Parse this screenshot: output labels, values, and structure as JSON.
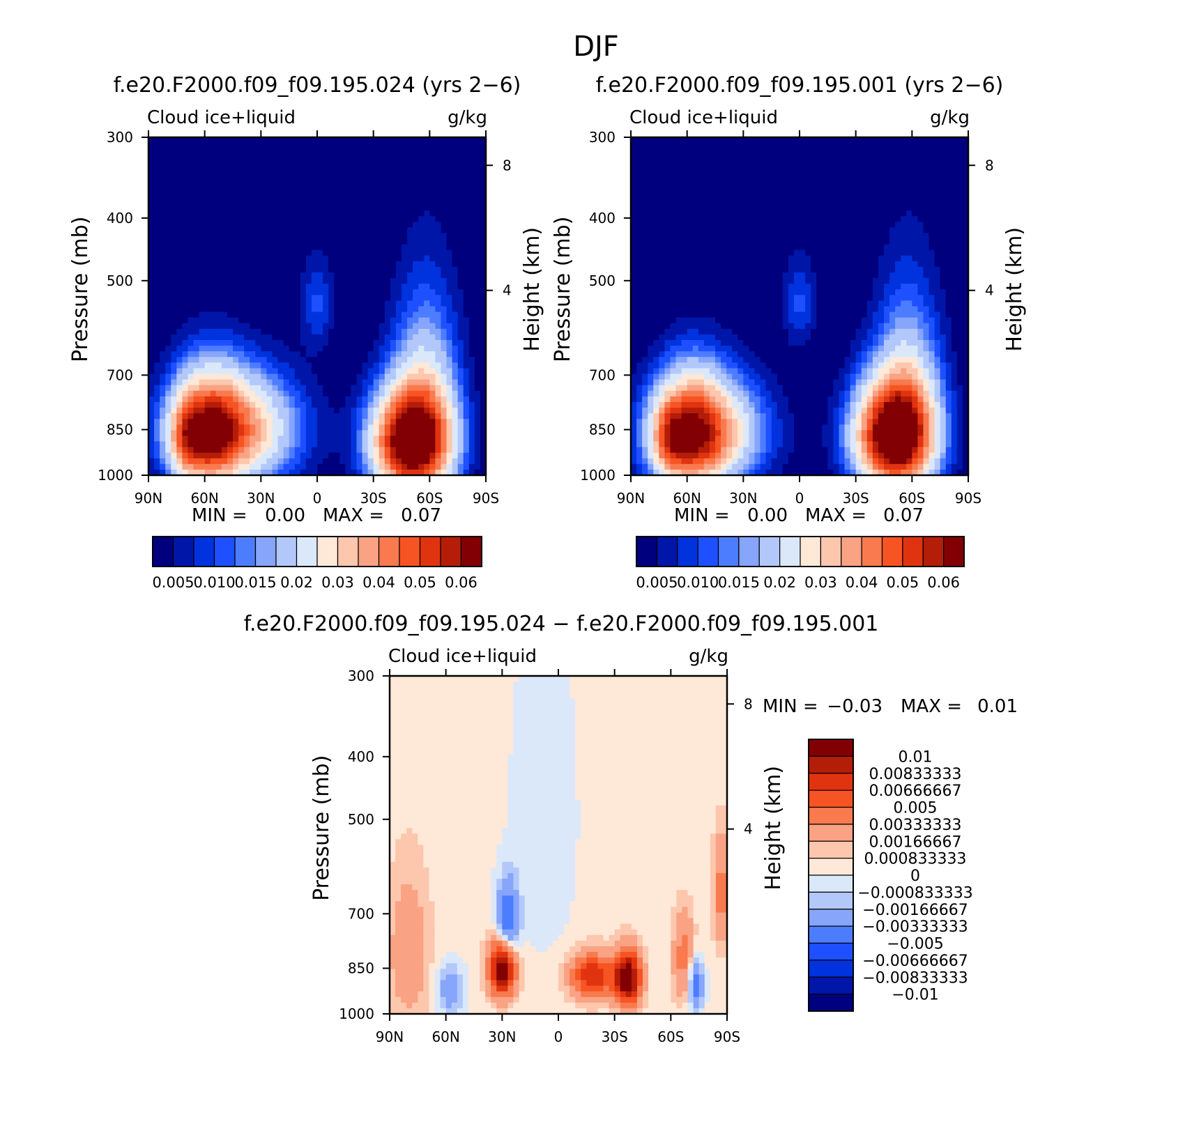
{
  "page": {
    "season": "DJF"
  },
  "colors": {
    "abs_scale": [
      "#00007f",
      "#0016a8",
      "#0032dd",
      "#1f50ff",
      "#4d7dff",
      "#86a5fb",
      "#b3c8fa",
      "#dbe8fa",
      "#fee8d8",
      "#fcc7ad",
      "#f9a284",
      "#f87a4e",
      "#f75424",
      "#e03410",
      "#b41d08",
      "#820003"
    ],
    "diff_scale": [
      "#00007f",
      "#0016a8",
      "#0032dd",
      "#1f50ff",
      "#4d7dff",
      "#86a5fb",
      "#b3c8fa",
      "#dbe8fa",
      "#fee8d8",
      "#fcc7ad",
      "#f9a284",
      "#f87a4e",
      "#f75424",
      "#e03410",
      "#b41d08",
      "#820003"
    ]
  },
  "chart_data": [
    {
      "type": "heatmap",
      "title": "f.e20.F2000.f09_f09.195.024 (yrs 2−6)",
      "variable": "Cloud ice+liquid",
      "units": "g/kg",
      "ylabel": "Pressure (mb)",
      "y2label": "Height (km)",
      "x_ticks": [
        "90N",
        "60N",
        "30N",
        "0",
        "30S",
        "60S",
        "90S"
      ],
      "y_ticks": [
        300,
        400,
        500,
        700,
        850,
        1000
      ],
      "y2_ticks": [
        8,
        4
      ],
      "stats": {
        "min_label": "MIN =",
        "min": "0.00",
        "max_label": "MAX =",
        "max": "0.07"
      },
      "colorbar_labels": [
        "0.005",
        "0.010",
        "0.015",
        "0.02",
        "0.03",
        "0.04",
        "0.05",
        "0.06"
      ],
      "features": [
        {
          "lat": 45,
          "p": 850,
          "value": 0.04,
          "sx": 22,
          "sp": 110
        },
        {
          "lat": 58,
          "p": 860,
          "value": 0.035,
          "sx": 12,
          "sp": 120
        },
        {
          "lat": -50,
          "p": 890,
          "value": 0.07,
          "sx": 14,
          "sp": 110
        },
        {
          "lat": -58,
          "p": 760,
          "value": 0.02,
          "sx": 12,
          "sp": 180
        },
        {
          "lat": 0,
          "p": 540,
          "value": 0.008,
          "sx": 6,
          "sp": 60
        },
        {
          "lat": 70,
          "p": 880,
          "value": 0.02,
          "sx": 6,
          "sp": 80
        }
      ]
    },
    {
      "type": "heatmap",
      "title": "f.e20.F2000.f09_f09.195.001 (yrs 2−6)",
      "variable": "Cloud ice+liquid",
      "units": "g/kg",
      "ylabel": "Pressure (mb)",
      "y2label": "Height (km)",
      "x_ticks": [
        "90N",
        "60N",
        "30N",
        "0",
        "30S",
        "60S",
        "90S"
      ],
      "y_ticks": [
        300,
        400,
        500,
        700,
        850,
        1000
      ],
      "y2_ticks": [
        8,
        4
      ],
      "stats": {
        "min_label": "MIN =",
        "min": "0.00",
        "max_label": "MAX =",
        "max": "0.07"
      },
      "colorbar_labels": [
        "0.005",
        "0.010",
        "0.015",
        "0.02",
        "0.03",
        "0.04",
        "0.05",
        "0.06"
      ],
      "features": [
        {
          "lat": 50,
          "p": 860,
          "value": 0.037,
          "sx": 20,
          "sp": 110
        },
        {
          "lat": 58,
          "p": 860,
          "value": 0.032,
          "sx": 12,
          "sp": 120
        },
        {
          "lat": -50,
          "p": 870,
          "value": 0.07,
          "sx": 14,
          "sp": 110
        },
        {
          "lat": -58,
          "p": 760,
          "value": 0.02,
          "sx": 12,
          "sp": 180
        },
        {
          "lat": 0,
          "p": 540,
          "value": 0.008,
          "sx": 6,
          "sp": 60
        },
        {
          "lat": 70,
          "p": 880,
          "value": 0.02,
          "sx": 6,
          "sp": 80
        }
      ]
    },
    {
      "type": "heatmap",
      "title": "f.e20.F2000.f09_f09.195.024 − f.e20.F2000.f09_f09.195.001",
      "variable": "Cloud ice+liquid",
      "units": "g/kg",
      "ylabel": "Pressure (mb)",
      "y2label": "Height (km)",
      "x_ticks": [
        "90N",
        "60N",
        "30N",
        "0",
        "30S",
        "60S",
        "90S"
      ],
      "y_ticks": [
        300,
        400,
        500,
        700,
        850,
        1000
      ],
      "y2_ticks": [
        8,
        4
      ],
      "stats": {
        "min_label": "MIN =",
        "min": "−0.03",
        "max_label": "MAX =",
        "max": "0.01"
      },
      "colorbar_labels": [
        "0.01",
        "0.00833333",
        "0.00666667",
        "0.005",
        "0.00333333",
        "0.00166667",
        "0.000833333",
        "0",
        "−0.000833333",
        "−0.00166667",
        "−0.00333333",
        "−0.005",
        "−0.00666667",
        "−0.00833333",
        "−0.01"
      ],
      "features": [
        {
          "lat": 30,
          "p": 850,
          "value": 0.012,
          "sx": 5,
          "sp": 60
        },
        {
          "lat": -37,
          "p": 880,
          "value": 0.012,
          "sx": 5,
          "sp": 60
        },
        {
          "lat": -18,
          "p": 875,
          "value": 0.008,
          "sx": 8,
          "sp": 50
        },
        {
          "lat": 80,
          "p": 800,
          "value": 0.0025,
          "sx": 8,
          "sp": 160
        },
        {
          "lat": -67,
          "p": 820,
          "value": 0.004,
          "sx": 4,
          "sp": 90
        },
        {
          "lat": -87,
          "p": 650,
          "value": 0.004,
          "sx": 3,
          "sp": 90
        },
        {
          "lat": 27,
          "p": 720,
          "value": -0.006,
          "sx": 4,
          "sp": 70
        },
        {
          "lat": 58,
          "p": 920,
          "value": -0.003,
          "sx": 5,
          "sp": 60
        },
        {
          "lat": -73,
          "p": 900,
          "value": -0.005,
          "sx": 3,
          "sp": 60
        },
        {
          "lat": 8,
          "p": 500,
          "value": -0.001,
          "sx": 12,
          "sp": 200
        }
      ]
    }
  ]
}
